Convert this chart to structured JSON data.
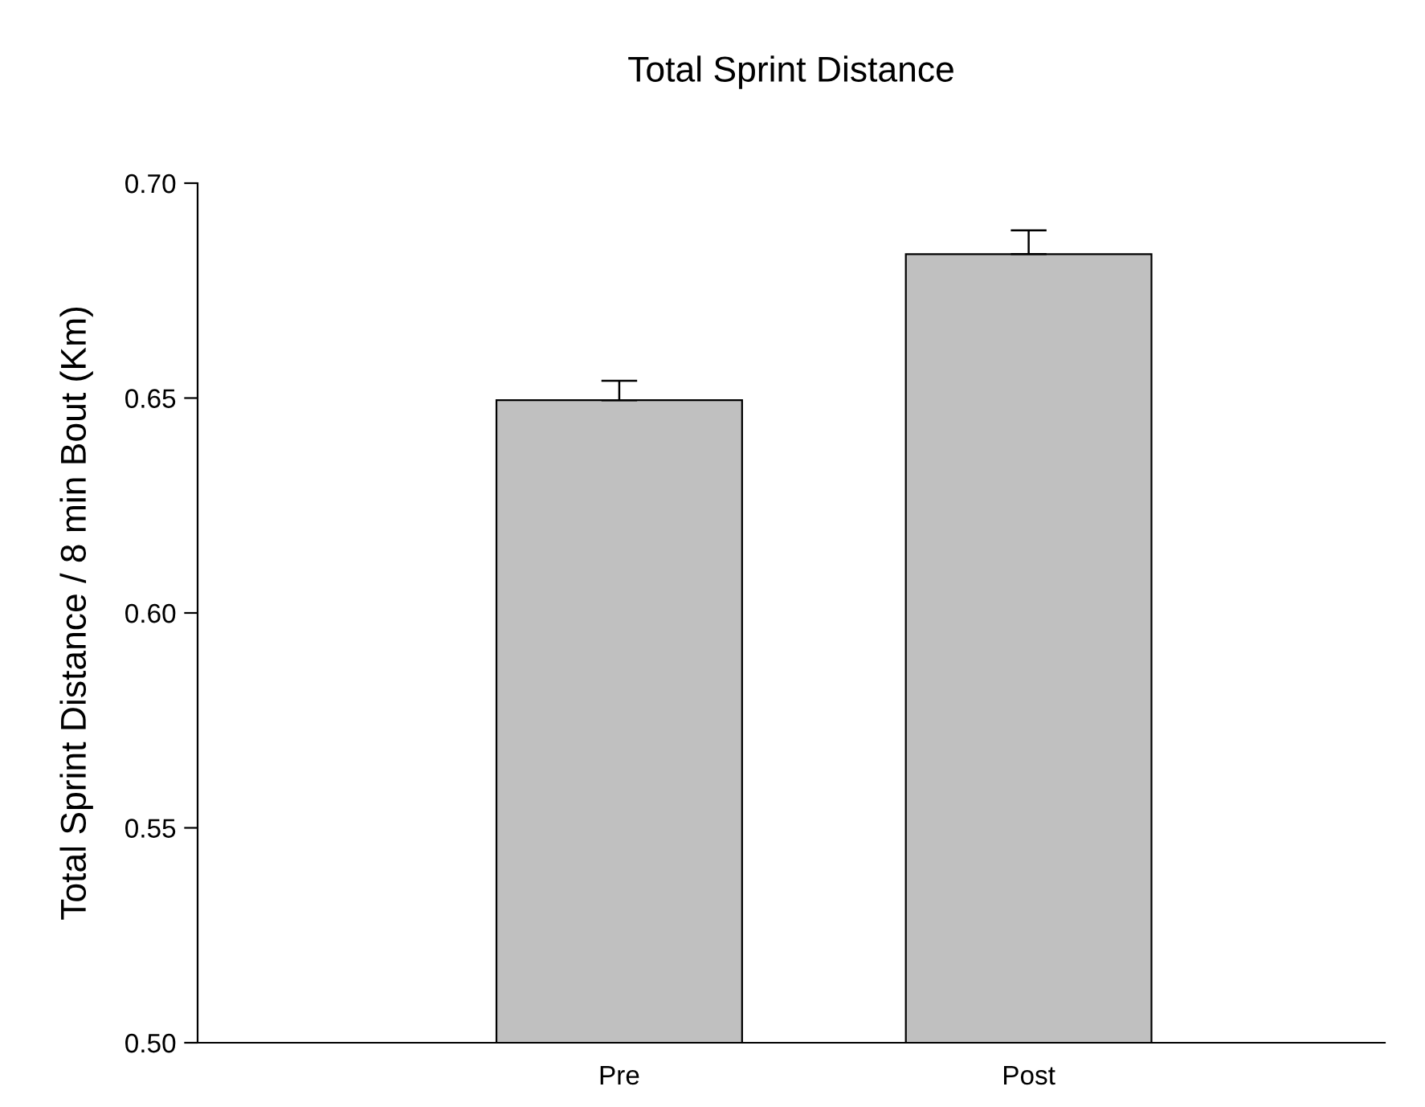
{
  "chart_data": {
    "type": "bar",
    "title": "Total Sprint Distance",
    "ylabel": "Total Sprint Distance / 8 min Bout (Km)",
    "categories": [
      "Pre",
      "Post"
    ],
    "values": [
      0.6495,
      0.6835
    ],
    "errors": [
      [
        0.6495,
        0.654
      ],
      [
        0.6835,
        0.689
      ]
    ],
    "color": "#c0c0c0",
    "ylim": [
      0.5,
      0.7
    ],
    "yticks": [
      {
        "value": 0.5,
        "label": "0.50"
      },
      {
        "value": 0.55,
        "label": "0.55"
      },
      {
        "value": 0.6,
        "label": "0.60"
      },
      {
        "value": 0.65,
        "label": "0.65"
      },
      {
        "value": 0.7,
        "label": "0.70"
      }
    ],
    "grid": false,
    "legend": false
  }
}
